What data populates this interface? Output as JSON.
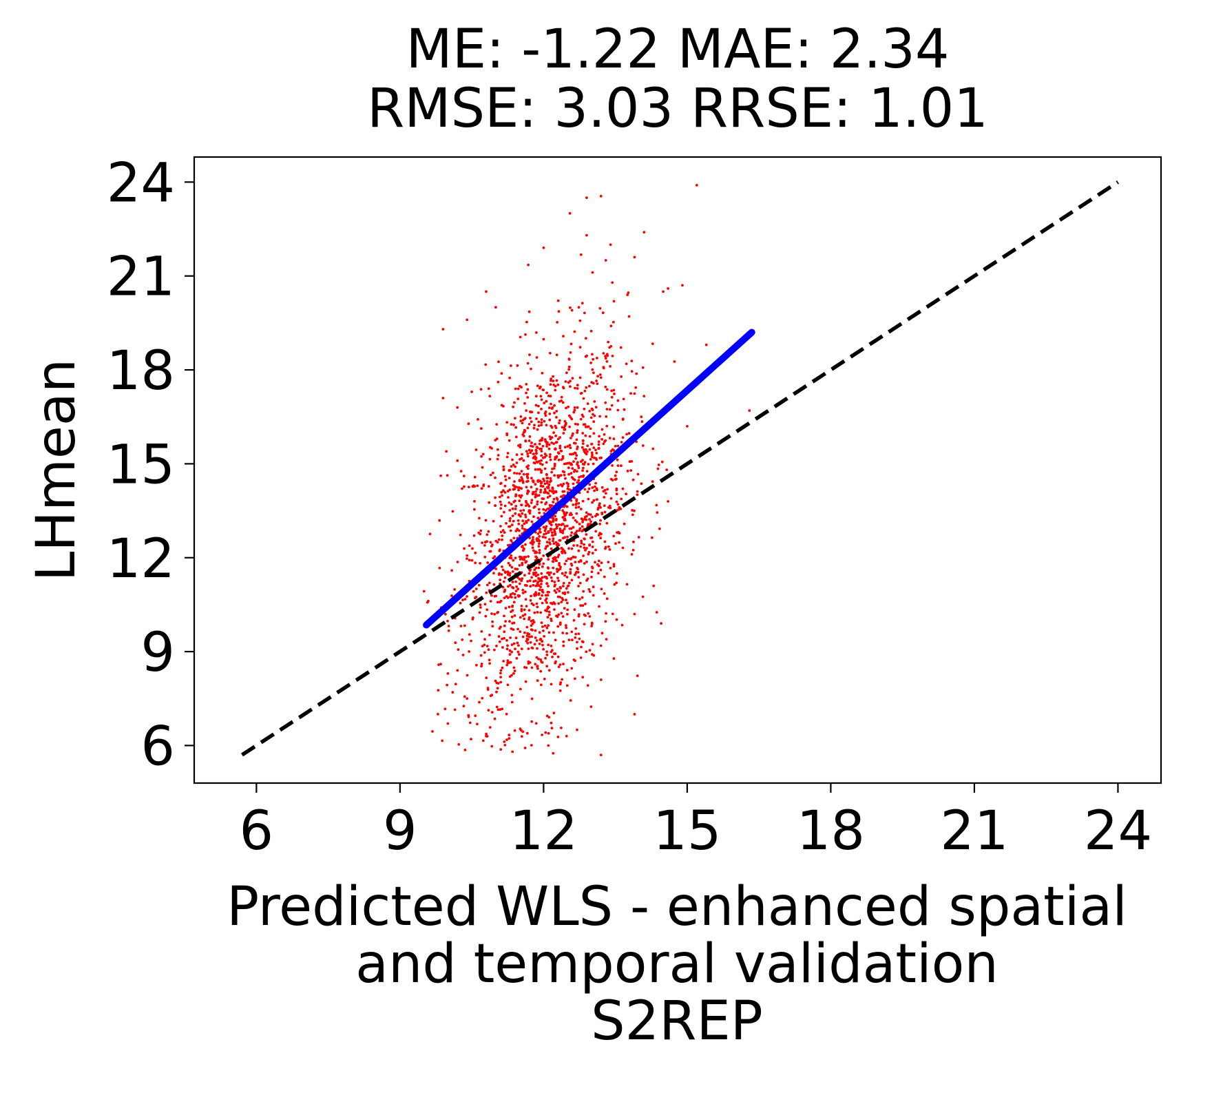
{
  "chart_data": {
    "type": "scatter",
    "title_lines": [
      "ME: -1.22 MAE: 2.34",
      "RMSE: 3.03 RRSE: 1.01"
    ],
    "xlabel_lines": [
      "Predicted WLS - enhanced spatial",
      "and temporal validation",
      "S2REP"
    ],
    "ylabel": "LHmean",
    "xlim": [
      4.7,
      24.9
    ],
    "ylim": [
      4.8,
      24.8
    ],
    "xticks": [
      "6",
      "9",
      "12",
      "15",
      "18",
      "21",
      "24"
    ],
    "yticks": [
      "6",
      "9",
      "12",
      "15",
      "18",
      "21",
      "24"
    ],
    "grid": false,
    "point_color": "#ff0000",
    "fit_color": "#0000ff",
    "identity_color": "#000000",
    "identity_line": {
      "x": [
        5.7,
        24.0
      ],
      "y": [
        5.7,
        24.0
      ]
    },
    "fit_line": {
      "x": [
        9.55,
        16.35
      ],
      "y": [
        9.85,
        19.2
      ]
    },
    "scatter_summary": {
      "n": 2000,
      "x_mean": 12.05,
      "x_sd": 0.85,
      "y_mean": 12.9,
      "y_sd": 2.9,
      "x_range": [
        9.5,
        16.4
      ],
      "y_range": [
        5.7,
        24.0
      ]
    },
    "outliers": [
      {
        "x": 15.2,
        "y": 23.9
      },
      {
        "x": 12.9,
        "y": 23.5
      },
      {
        "x": 13.2,
        "y": 23.55
      },
      {
        "x": 12.55,
        "y": 23.0
      },
      {
        "x": 12.9,
        "y": 22.3
      },
      {
        "x": 14.1,
        "y": 22.4
      },
      {
        "x": 13.9,
        "y": 21.6
      },
      {
        "x": 10.8,
        "y": 20.5
      },
      {
        "x": 14.9,
        "y": 20.7
      },
      {
        "x": 9.9,
        "y": 19.3
      },
      {
        "x": 10.4,
        "y": 19.6
      },
      {
        "x": 9.9,
        "y": 17.1
      },
      {
        "x": 10.2,
        "y": 16.8
      },
      {
        "x": 15.4,
        "y": 18.8
      },
      {
        "x": 16.3,
        "y": 16.7
      },
      {
        "x": 15.0,
        "y": 16.2
      },
      {
        "x": 14.6,
        "y": 13.8
      },
      {
        "x": 14.3,
        "y": 11.1
      },
      {
        "x": 13.9,
        "y": 10.2
      },
      {
        "x": 13.9,
        "y": 7.0
      },
      {
        "x": 13.2,
        "y": 5.7
      },
      {
        "x": 12.2,
        "y": 5.75
      },
      {
        "x": 11.35,
        "y": 5.8
      },
      {
        "x": 12.1,
        "y": 6.0
      },
      {
        "x": 12.7,
        "y": 6.5
      },
      {
        "x": 10.8,
        "y": 6.3
      },
      {
        "x": 10.0,
        "y": 6.7
      },
      {
        "x": 9.85,
        "y": 8.6
      },
      {
        "x": 10.0,
        "y": 8.3
      },
      {
        "x": 10.1,
        "y": 7.7
      },
      {
        "x": 10.4,
        "y": 7.5
      },
      {
        "x": 10.2,
        "y": 15.1
      },
      {
        "x": 10.5,
        "y": 17.3
      },
      {
        "x": 11.0,
        "y": 20.0
      },
      {
        "x": 13.4,
        "y": 22.0
      },
      {
        "x": 14.5,
        "y": 20.5
      },
      {
        "x": 14.6,
        "y": 20.6
      },
      {
        "x": 13.3,
        "y": 21.5
      },
      {
        "x": 12.0,
        "y": 21.9
      },
      {
        "x": 13.2,
        "y": 8.1
      }
    ]
  }
}
